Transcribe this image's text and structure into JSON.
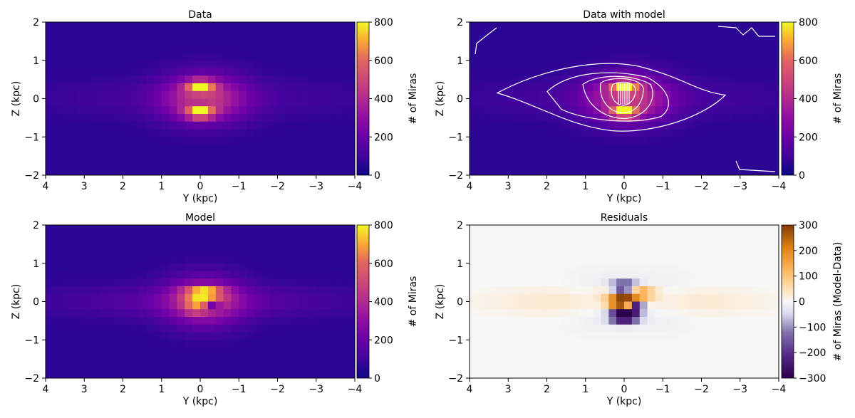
{
  "panels": [
    {
      "id": "data",
      "title": "Data",
      "xlabel": "Y (kpc)",
      "ylabel": "Z (kpc)",
      "colorbar": {
        "label": "# of Miras",
        "cmap": "plasma",
        "ticks": [
          0,
          200,
          400,
          600,
          800
        ]
      }
    },
    {
      "id": "data_with_model",
      "title": "Data with model",
      "xlabel": "Y (kpc)",
      "ylabel": "Z (kpc)",
      "colorbar": {
        "label": "# of Miras",
        "cmap": "plasma",
        "ticks": [
          0,
          200,
          400,
          600,
          800
        ]
      }
    },
    {
      "id": "model",
      "title": "Model",
      "xlabel": "Y (kpc)",
      "ylabel": "Z (kpc)",
      "colorbar": {
        "label": "# of Miras",
        "cmap": "plasma",
        "ticks": [
          0,
          200,
          400,
          600,
          800
        ]
      }
    },
    {
      "id": "residuals",
      "title": "Residuals",
      "xlabel": "Y (kpc)",
      "ylabel": "Z (kpc)",
      "colorbar": {
        "label": "# of Miras (Model-Data)",
        "cmap": "PuOr_r",
        "ticks": [
          -300,
          -200,
          -100,
          0,
          100,
          200,
          300
        ]
      }
    }
  ],
  "chart_data": [
    {
      "type": "heatmap",
      "title": "Data",
      "xlabel": "Y (kpc)",
      "ylabel": "Z (kpc)",
      "xlim": [
        4,
        -4
      ],
      "ylim": [
        -2,
        2
      ],
      "x_ticks": [
        4,
        3,
        2,
        1,
        0,
        -1,
        -2,
        -3,
        -4
      ],
      "y_ticks": [
        2,
        1,
        0,
        -1,
        -2
      ],
      "colorbar_label": "# of Miras",
      "clim": [
        0,
        800
      ],
      "x_bins": 40,
      "y_bins": 20,
      "peak_value": 800,
      "peak_location": {
        "y_kpc": 0.0,
        "z_kpc": 0.2
      }
    },
    {
      "type": "heatmap",
      "title": "Data with model",
      "xlabel": "Y (kpc)",
      "ylabel": "Z (kpc)",
      "xlim": [
        4,
        -4
      ],
      "ylim": [
        -2,
        2
      ],
      "x_ticks": [
        4,
        3,
        2,
        1,
        0,
        -1,
        -2,
        -3,
        -4
      ],
      "y_ticks": [
        2,
        1,
        0,
        -1,
        -2
      ],
      "colorbar_label": "# of Miras",
      "clim": [
        0,
        800
      ],
      "overlay": "white model contours"
    },
    {
      "type": "heatmap",
      "title": "Model",
      "xlabel": "Y (kpc)",
      "ylabel": "Z (kpc)",
      "xlim": [
        4,
        -4
      ],
      "ylim": [
        -2,
        2
      ],
      "x_ticks": [
        4,
        3,
        2,
        1,
        0,
        -1,
        -2,
        -3,
        -4
      ],
      "y_ticks": [
        2,
        1,
        0,
        -1,
        -2
      ],
      "colorbar_label": "# of Miras",
      "clim": [
        0,
        800
      ]
    },
    {
      "type": "heatmap",
      "title": "Residuals",
      "xlabel": "Y (kpc)",
      "ylabel": "Z (kpc)",
      "xlim": [
        4,
        -4
      ],
      "ylim": [
        -2,
        2
      ],
      "x_ticks": [
        4,
        3,
        2,
        1,
        0,
        -1,
        -2,
        -3,
        -4
      ],
      "y_ticks": [
        2,
        1,
        0,
        -1,
        -2
      ],
      "colorbar_label": "# of Miras (Model-Data)",
      "clim": [
        -300,
        300
      ]
    }
  ]
}
